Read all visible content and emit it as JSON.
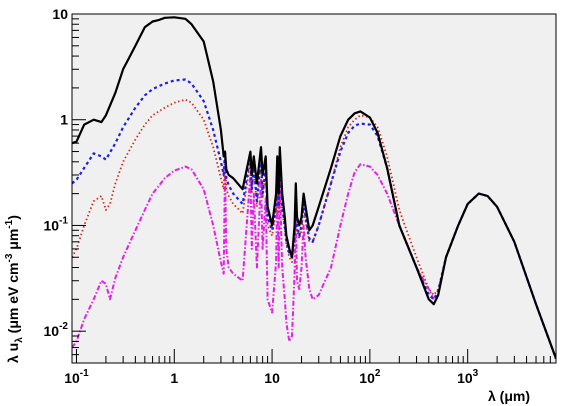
{
  "chart_data": {
    "type": "line",
    "xlabel": "λ (μm)",
    "ylabel": "λ u_λ (μm eV cm^-3 μm^-1)",
    "x_scale": "log",
    "y_scale": "log",
    "xlim": [
      0.09,
      8000
    ],
    "ylim": [
      0.005,
      10
    ],
    "grid": false,
    "x_ticks": [
      {
        "value": 0.1,
        "base": "10",
        "exp": "-1"
      },
      {
        "value": 1,
        "base": "1",
        "exp": ""
      },
      {
        "value": 10,
        "base": "10",
        "exp": ""
      },
      {
        "value": 100,
        "base": "10",
        "exp": "2"
      },
      {
        "value": 1000,
        "base": "10",
        "exp": "3"
      }
    ],
    "y_ticks": [
      {
        "value": 0.01,
        "base": "10",
        "exp": "-2"
      },
      {
        "value": 0.1,
        "base": "10",
        "exp": "-1"
      },
      {
        "value": 1,
        "base": "1",
        "exp": ""
      },
      {
        "value": 10,
        "base": "10",
        "exp": ""
      }
    ],
    "colors": {
      "plot_bg": "#f0f0f0",
      "total": "#000000",
      "blue": "#1f1fe6",
      "red": "#d42a1a",
      "magenta": "#e61ee6"
    },
    "series": [
      {
        "style": "solid",
        "color": "#000000",
        "x": [
          0.09,
          0.1,
          0.12,
          0.15,
          0.18,
          0.2,
          0.25,
          0.3,
          0.4,
          0.5,
          0.6,
          0.7,
          0.8,
          1.0,
          1.3,
          1.5,
          2.0,
          2.5,
          3.0,
          3.2,
          3.3,
          3.4,
          3.6,
          4.0,
          5.0,
          6.0,
          6.2,
          6.5,
          7.0,
          7.7,
          8.0,
          8.6,
          9.0,
          10.0,
          11.0,
          11.3,
          11.7,
          12.0,
          12.7,
          13.5,
          14.0,
          15.0,
          16.0,
          17.0,
          17.5,
          18.0,
          19.0,
          20.0,
          21.0,
          22.0,
          24.0,
          26.0,
          30.0,
          40.0,
          50.0,
          60.0,
          70.0,
          80.0,
          100.0,
          120.0,
          150.0,
          200.0,
          300.0,
          400.0,
          450.0,
          500.0,
          600.0,
          800.0,
          1000.0,
          1300.0,
          1600.0,
          2000.0,
          3000.0,
          5000.0,
          8000.0
        ],
        "y": [
          0.6,
          0.62,
          0.9,
          1.0,
          0.95,
          1.1,
          1.8,
          3.0,
          5.0,
          7.5,
          8.5,
          8.8,
          9.2,
          9.3,
          9.0,
          8.0,
          5.5,
          2.3,
          0.8,
          0.45,
          0.5,
          0.34,
          0.3,
          0.28,
          0.22,
          0.5,
          0.3,
          0.45,
          0.25,
          0.55,
          0.3,
          0.45,
          0.15,
          0.1,
          0.2,
          0.45,
          0.2,
          0.55,
          0.2,
          0.12,
          0.08,
          0.06,
          0.05,
          0.1,
          0.25,
          0.12,
          0.1,
          0.12,
          0.2,
          0.15,
          0.09,
          0.1,
          0.15,
          0.35,
          0.7,
          1.0,
          1.15,
          1.2,
          1.05,
          0.75,
          0.35,
          0.1,
          0.04,
          0.02,
          0.018,
          0.022,
          0.05,
          0.1,
          0.16,
          0.2,
          0.19,
          0.15,
          0.07,
          0.018,
          0.0055
        ]
      },
      {
        "style": "dashed",
        "color": "#1f1fe6",
        "x": [
          0.09,
          0.1,
          0.12,
          0.15,
          0.18,
          0.2,
          0.25,
          0.3,
          0.4,
          0.5,
          0.6,
          0.8,
          1.0,
          1.3,
          1.5,
          2.0,
          2.5,
          3.0,
          3.2,
          3.3,
          3.4,
          3.6,
          4.0,
          5.0,
          6.0,
          6.2,
          6.5,
          7.0,
          7.7,
          8.0,
          8.6,
          9.0,
          10.0,
          11.0,
          11.3,
          11.7,
          12.0,
          12.7,
          13.5,
          14.0,
          15.0,
          16.0,
          17.0,
          17.5,
          18.0,
          19.0,
          20.0,
          21.0,
          22.0,
          24.0,
          26.0,
          30.0,
          40.0,
          50.0,
          60.0,
          70.0,
          80.0,
          100.0,
          120.0,
          150.0,
          200.0,
          300.0,
          400.0,
          450.0,
          500.0,
          600.0,
          800.0,
          1000.0,
          1300.0,
          1600.0,
          2000.0,
          3000.0,
          5000.0,
          8000.0
        ],
        "y": [
          0.25,
          0.27,
          0.35,
          0.48,
          0.45,
          0.42,
          0.6,
          0.85,
          1.3,
          1.7,
          1.95,
          2.2,
          2.35,
          2.4,
          2.2,
          1.5,
          0.8,
          0.4,
          0.3,
          0.5,
          0.28,
          0.24,
          0.2,
          0.16,
          0.45,
          0.22,
          0.38,
          0.17,
          0.45,
          0.2,
          0.35,
          0.12,
          0.09,
          0.15,
          0.35,
          0.15,
          0.45,
          0.15,
          0.1,
          0.07,
          0.055,
          0.05,
          0.08,
          0.2,
          0.1,
          0.08,
          0.1,
          0.16,
          0.12,
          0.075,
          0.07,
          0.1,
          0.25,
          0.5,
          0.75,
          0.88,
          0.92,
          0.9,
          0.7,
          0.35,
          0.1,
          0.04,
          0.022,
          0.02,
          0.024,
          0.05,
          0.1,
          0.16,
          0.2,
          0.19,
          0.15,
          0.07,
          0.018,
          0.0055
        ]
      },
      {
        "style": "dotted",
        "color": "#d42a1a",
        "x": [
          0.09,
          0.1,
          0.12,
          0.15,
          0.18,
          0.2,
          0.22,
          0.25,
          0.3,
          0.4,
          0.5,
          0.6,
          0.8,
          1.0,
          1.3,
          1.5,
          2.0,
          2.5,
          3.0,
          3.2,
          3.3,
          3.4,
          3.6,
          4.0,
          5.0,
          6.0,
          6.2,
          6.5,
          7.0,
          7.7,
          8.0,
          8.6,
          9.0,
          10.0,
          11.0,
          11.3,
          11.7,
          12.0,
          12.7,
          13.5,
          14.0,
          15.0,
          16.0,
          17.0,
          17.5,
          18.0,
          19.0,
          20.0,
          21.0,
          22.0,
          24.0,
          26.0,
          30.0,
          40.0,
          50.0,
          60.0,
          70.0,
          80.0,
          100.0,
          120.0,
          150.0,
          200.0,
          300.0,
          400.0,
          450.0,
          500.0,
          600.0,
          800.0,
          1000.0,
          1300.0,
          1600.0,
          2000.0,
          3000.0,
          5000.0,
          8000.0
        ],
        "y": [
          0.05,
          0.06,
          0.1,
          0.17,
          0.19,
          0.14,
          0.16,
          0.25,
          0.4,
          0.65,
          0.9,
          1.1,
          1.3,
          1.45,
          1.55,
          1.45,
          1.0,
          0.55,
          0.28,
          0.22,
          0.45,
          0.22,
          0.19,
          0.16,
          0.13,
          0.4,
          0.2,
          0.35,
          0.15,
          0.42,
          0.18,
          0.32,
          0.1,
          0.08,
          0.14,
          0.32,
          0.13,
          0.42,
          0.14,
          0.09,
          0.065,
          0.05,
          0.045,
          0.075,
          0.19,
          0.09,
          0.075,
          0.09,
          0.15,
          0.11,
          0.07,
          0.07,
          0.1,
          0.25,
          0.55,
          0.85,
          1.0,
          1.1,
          1.05,
          0.85,
          0.45,
          0.14,
          0.05,
          0.025,
          0.022,
          0.025,
          0.05,
          0.1,
          0.16,
          0.2,
          0.19,
          0.15,
          0.07,
          0.018,
          0.0055
        ]
      },
      {
        "style": "dash-dot",
        "color": "#e61ee6",
        "x": [
          0.09,
          0.1,
          0.12,
          0.15,
          0.18,
          0.2,
          0.22,
          0.25,
          0.3,
          0.4,
          0.5,
          0.6,
          0.8,
          1.0,
          1.3,
          1.5,
          2.0,
          2.5,
          3.0,
          3.2,
          3.3,
          3.4,
          3.6,
          4.0,
          5.0,
          6.0,
          6.2,
          6.5,
          7.0,
          7.7,
          8.0,
          8.6,
          9.0,
          10.0,
          11.0,
          11.3,
          11.7,
          12.0,
          12.7,
          13.5,
          14.0,
          15.0,
          16.0,
          17.0,
          17.5,
          18.0,
          19.0,
          20.0,
          21.0,
          22.0,
          24.0,
          26.0,
          30.0,
          40.0,
          50.0,
          60.0,
          70.0,
          80.0,
          100.0,
          120.0,
          150.0,
          200.0,
          300.0,
          400.0,
          450.0
        ],
        "y": [
          0.007,
          0.008,
          0.013,
          0.02,
          0.03,
          0.028,
          0.02,
          0.032,
          0.05,
          0.09,
          0.14,
          0.2,
          0.28,
          0.33,
          0.36,
          0.34,
          0.22,
          0.1,
          0.045,
          0.035,
          0.35,
          0.06,
          0.04,
          0.035,
          0.03,
          0.3,
          0.06,
          0.2,
          0.04,
          0.28,
          0.06,
          0.18,
          0.02,
          0.015,
          0.045,
          0.2,
          0.04,
          0.25,
          0.04,
          0.02,
          0.012,
          0.008,
          0.009,
          0.035,
          0.12,
          0.03,
          0.025,
          0.04,
          0.1,
          0.05,
          0.025,
          0.02,
          0.022,
          0.04,
          0.1,
          0.2,
          0.32,
          0.38,
          0.36,
          0.3,
          0.2,
          0.1,
          0.04,
          0.025,
          0.02
        ]
      }
    ]
  }
}
